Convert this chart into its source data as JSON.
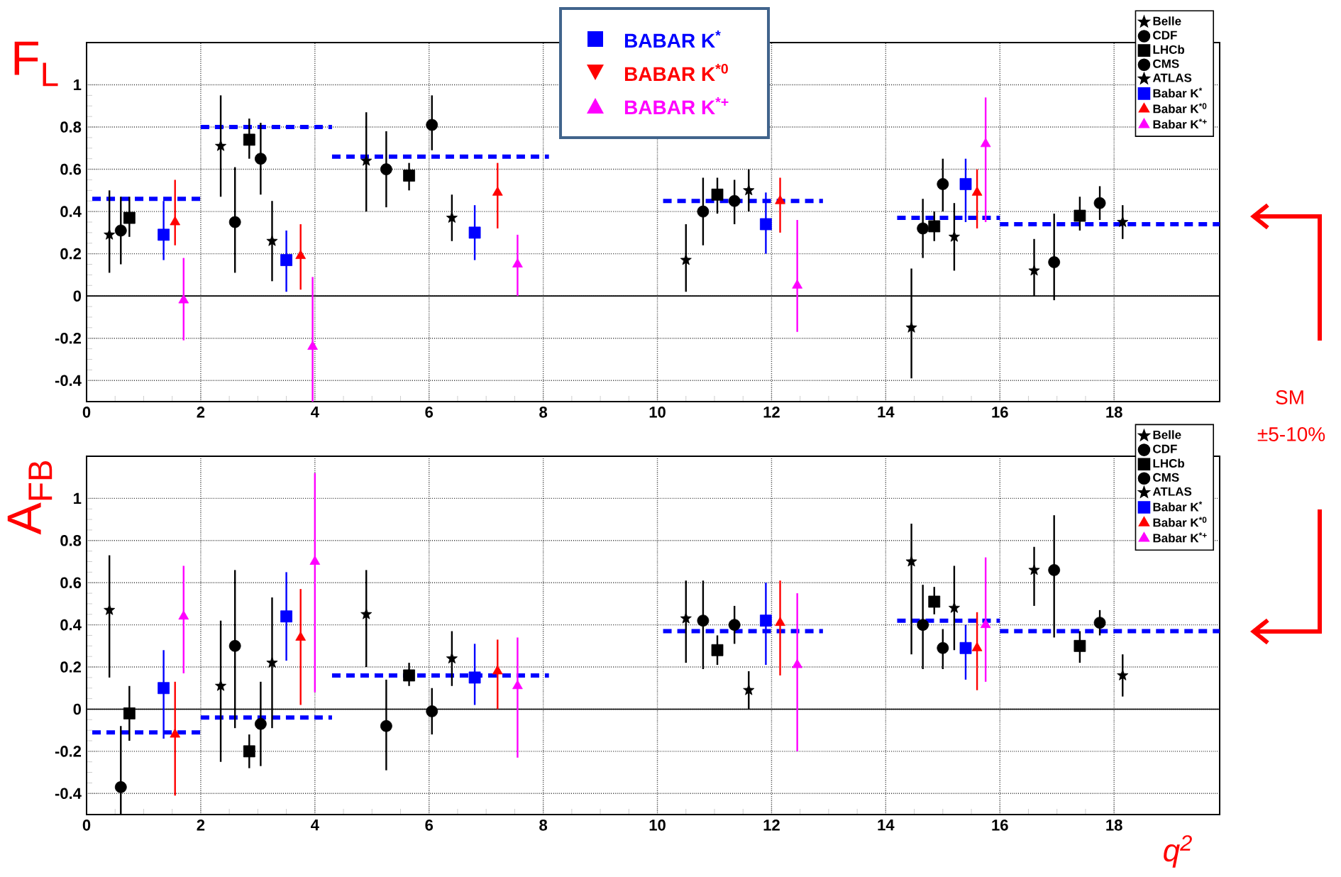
{
  "chart_data": [
    {
      "type": "scatter",
      "ylabel": "F$_{L}$",
      "xlim": [
        0,
        19.85
      ],
      "ylim": [
        -0.5,
        1.2
      ],
      "xticks": [
        0,
        2,
        4,
        6,
        8,
        10,
        12,
        14,
        16,
        18
      ],
      "yticks": [
        -0.4,
        -0.2,
        0,
        0.2,
        0.4,
        0.6,
        0.8,
        1
      ],
      "grid": true,
      "legend": "top right",
      "ref_lines": [
        {
          "axis": "y",
          "value": 0
        }
      ],
      "annotations": [
        "SM",
        "±5-10%",
        "BABAR K$^{*}$",
        "BABAR K$^{*0}$",
        "BABAR K$^{*+}$"
      ],
      "series": [
        {
          "name": "Belle",
          "color": "#000000",
          "marker": "star",
          "x": [
            0.4,
            2.35,
            4.9,
            10.5,
            14.45,
            16.6
          ],
          "values": [
            0.29,
            0.71,
            0.64,
            0.17,
            -0.15,
            0.12
          ],
          "errors": [
            [
              0.11,
              0.5
            ],
            [
              0.47,
              0.95
            ],
            [
              0.4,
              0.87
            ],
            [
              0.02,
              0.34
            ],
            [
              -0.39,
              0.13
            ],
            [
              0.0,
              0.27
            ]
          ]
        },
        {
          "name": "CDF",
          "color": "#000000",
          "marker": "circle",
          "x": [
            0.6,
            2.6,
            5.25,
            10.8,
            14.65,
            16.95
          ],
          "values": [
            0.31,
            0.35,
            0.6,
            0.4,
            0.32,
            0.16
          ],
          "errors": [
            [
              0.15,
              0.47
            ],
            [
              0.11,
              0.61
            ],
            [
              0.42,
              0.78
            ],
            [
              0.24,
              0.56
            ],
            [
              0.18,
              0.46
            ],
            [
              -0.02,
              0.39
            ]
          ]
        },
        {
          "name": "LHCb",
          "color": "#000000",
          "marker": "square",
          "x": [
            0.75,
            2.85,
            5.65,
            11.05,
            14.85,
            17.4
          ],
          "values": [
            0.37,
            0.74,
            0.57,
            0.48,
            0.33,
            0.38
          ],
          "errors": [
            [
              0.28,
              0.47
            ],
            [
              0.65,
              0.84
            ],
            [
              0.5,
              0.63
            ],
            [
              0.39,
              0.56
            ],
            [
              0.26,
              0.4
            ],
            [
              0.31,
              0.47
            ]
          ]
        },
        {
          "name": "CMS",
          "color": "#000000",
          "marker": "circle",
          "x": [
            3.05,
            6.05,
            11.35,
            15.0,
            17.75
          ],
          "values": [
            0.65,
            0.81,
            0.45,
            0.53,
            0.44
          ],
          "errors": [
            [
              0.48,
              0.82
            ],
            [
              0.69,
              0.95
            ],
            [
              0.34,
              0.55
            ],
            [
              0.4,
              0.65
            ],
            [
              0.36,
              0.52
            ]
          ]
        },
        {
          "name": "ATLAS",
          "color": "#000000",
          "marker": "star",
          "x": [
            3.25,
            6.4,
            11.6,
            15.2,
            18.15
          ],
          "values": [
            0.26,
            0.37,
            0.5,
            0.28,
            0.35
          ],
          "errors": [
            [
              0.07,
              0.45
            ],
            [
              0.26,
              0.48
            ],
            [
              0.4,
              0.6
            ],
            [
              0.12,
              0.44
            ],
            [
              0.27,
              0.43
            ]
          ]
        },
        {
          "name": "Babar K$^{*}$",
          "color": "#0000ff",
          "marker": "square",
          "x": [
            1.35,
            3.5,
            6.8,
            11.9,
            15.4
          ],
          "values": [
            0.29,
            0.17,
            0.3,
            0.34,
            0.53
          ],
          "errors": [
            [
              0.17,
              0.45
            ],
            [
              0.02,
              0.31
            ],
            [
              0.17,
              0.43
            ],
            [
              0.2,
              0.49
            ],
            [
              0.35,
              0.65
            ]
          ]
        },
        {
          "name": "Babar K$^{*0}$",
          "color": "#ff0000",
          "marker": "triangle",
          "x": [
            1.55,
            3.75,
            7.2,
            12.15,
            15.6
          ],
          "values": [
            0.35,
            0.19,
            0.49,
            0.45,
            0.49
          ],
          "errors": [
            [
              0.24,
              0.55
            ],
            [
              0.03,
              0.34
            ],
            [
              0.32,
              0.63
            ],
            [
              0.3,
              0.56
            ],
            [
              0.32,
              0.6
            ]
          ]
        },
        {
          "name": "Babar K$^{*+}$",
          "color": "#ff00ff",
          "marker": "triangle",
          "x": [
            1.7,
            3.96,
            7.55,
            12.45,
            15.75
          ],
          "values": [
            -0.02,
            -0.24,
            0.15,
            0.05,
            0.72
          ],
          "errors": [
            [
              -0.21,
              0.18
            ],
            [
              -0.5,
              0.09
            ],
            [
              0.0,
              0.29
            ],
            [
              -0.17,
              0.36
            ],
            [
              0.35,
              0.94
            ]
          ]
        },
        {
          "type": "line",
          "color": "#0000ff",
          "line_style": "dashed",
          "marker": "none",
          "x": [
            0.1,
            2,
            null,
            2,
            4.3,
            null,
            4.3,
            8.1,
            null,
            10.1,
            12.9,
            null,
            14.2,
            16,
            null,
            16,
            19.85
          ],
          "values": [
            0.46,
            0.46,
            null,
            0.8,
            0.8,
            null,
            0.66,
            0.66,
            null,
            0.45,
            0.45,
            null,
            0.37,
            0.37,
            null,
            0.34,
            0.34
          ]
        }
      ]
    },
    {
      "type": "scatter",
      "ylabel": "A$_{FB}$",
      "xlabel": "q$^{2}$",
      "xlim": [
        0,
        19.85
      ],
      "ylim": [
        -0.5,
        1.2
      ],
      "xticks": [
        0,
        2,
        4,
        6,
        8,
        10,
        12,
        14,
        16,
        18
      ],
      "yticks": [
        -0.4,
        -0.2,
        0,
        0.2,
        0.4,
        0.6,
        0.8,
        1
      ],
      "grid": true,
      "legend": "top right",
      "ref_lines": [
        {
          "axis": "y",
          "value": 0
        }
      ],
      "series": [
        {
          "name": "Belle",
          "color": "#000000",
          "marker": "star",
          "x": [
            0.4,
            2.35,
            4.9,
            10.5,
            14.45,
            16.6
          ],
          "values": [
            0.47,
            0.11,
            0.45,
            0.43,
            0.7,
            0.66
          ],
          "errors": [
            [
              0.15,
              0.73
            ],
            [
              -0.25,
              0.42
            ],
            [
              0.2,
              0.66
            ],
            [
              0.22,
              0.61
            ],
            [
              0.26,
              0.88
            ],
            [
              0.49,
              0.77
            ]
          ]
        },
        {
          "name": "CDF",
          "color": "#000000",
          "marker": "circle",
          "x": [
            0.6,
            2.6,
            5.25,
            10.8,
            14.65,
            16.95
          ],
          "values": [
            -0.37,
            0.3,
            -0.08,
            0.42,
            0.4,
            0.66
          ],
          "errors": [
            [
              -0.5,
              -0.08
            ],
            [
              -0.09,
              0.66
            ],
            [
              -0.29,
              0.14
            ],
            [
              0.19,
              0.61
            ],
            [
              0.19,
              0.59
            ],
            [
              0.34,
              0.92
            ]
          ]
        },
        {
          "name": "LHCb",
          "color": "#000000",
          "marker": "square",
          "x": [
            0.75,
            2.85,
            5.65,
            11.05,
            14.85,
            17.4
          ],
          "values": [
            -0.02,
            -0.2,
            0.16,
            0.28,
            0.51,
            0.3
          ],
          "errors": [
            [
              -0.15,
              0.11
            ],
            [
              -0.28,
              -0.12
            ],
            [
              0.11,
              0.22
            ],
            [
              0.21,
              0.35
            ],
            [
              0.45,
              0.58
            ],
            [
              0.22,
              0.37
            ]
          ]
        },
        {
          "name": "CMS",
          "color": "#000000",
          "marker": "circle",
          "x": [
            3.05,
            6.05,
            11.35,
            15.0,
            17.75
          ],
          "values": [
            -0.07,
            -0.01,
            0.4,
            0.29,
            0.41
          ],
          "errors": [
            [
              -0.27,
              0.13
            ],
            [
              -0.12,
              0.1
            ],
            [
              0.31,
              0.49
            ],
            [
              0.19,
              0.38
            ],
            [
              0.35,
              0.47
            ]
          ]
        },
        {
          "name": "ATLAS",
          "color": "#000000",
          "marker": "star",
          "x": [
            3.25,
            6.4,
            11.6,
            15.2,
            18.15
          ],
          "values": [
            0.22,
            0.24,
            0.09,
            0.48,
            0.16
          ],
          "errors": [
            [
              -0.09,
              0.53
            ],
            [
              0.11,
              0.37
            ],
            [
              0.0,
              0.18
            ],
            [
              0.28,
              0.68
            ],
            [
              0.06,
              0.26
            ]
          ]
        },
        {
          "name": "Babar K$^{*}$",
          "color": "#0000ff",
          "marker": "square",
          "x": [
            1.35,
            3.5,
            6.8,
            11.9,
            15.4
          ],
          "values": [
            0.1,
            0.44,
            0.15,
            0.42,
            0.29
          ],
          "errors": [
            [
              -0.14,
              0.28
            ],
            [
              0.23,
              0.65
            ],
            [
              0.02,
              0.31
            ],
            [
              0.21,
              0.6
            ],
            [
              0.14,
              0.4
            ]
          ]
        },
        {
          "name": "Babar K$^{*0}$",
          "color": "#ff0000",
          "marker": "triangle",
          "x": [
            1.55,
            3.75,
            7.2,
            12.15,
            15.6
          ],
          "values": [
            -0.12,
            0.34,
            0.18,
            0.41,
            0.29
          ],
          "errors": [
            [
              -0.41,
              0.13
            ],
            [
              0.02,
              0.57
            ],
            [
              0.0,
              0.33
            ],
            [
              0.16,
              0.61
            ],
            [
              0.09,
              0.46
            ]
          ]
        },
        {
          "name": "Babar K$^{*+}$",
          "color": "#ff00ff",
          "marker": "triangle",
          "x": [
            1.7,
            4.0,
            7.55,
            12.45,
            15.75
          ],
          "values": [
            0.44,
            0.7,
            0.11,
            0.21,
            0.4
          ],
          "errors": [
            [
              0.17,
              0.68
            ],
            [
              0.08,
              1.12
            ],
            [
              -0.23,
              0.34
            ],
            [
              -0.2,
              0.55
            ],
            [
              0.13,
              0.72
            ]
          ]
        },
        {
          "type": "line",
          "color": "#0000ff",
          "line_style": "dashed",
          "marker": "none",
          "x": [
            0.1,
            2,
            null,
            2,
            4.3,
            null,
            4.3,
            8.1,
            null,
            10.1,
            12.9,
            null,
            14.2,
            16,
            null,
            16,
            19.85
          ],
          "values": [
            -0.11,
            -0.11,
            null,
            -0.04,
            -0.04,
            null,
            0.16,
            0.16,
            null,
            0.37,
            0.37,
            null,
            0.42,
            0.42,
            null,
            0.37,
            0.37
          ]
        }
      ]
    }
  ]
}
